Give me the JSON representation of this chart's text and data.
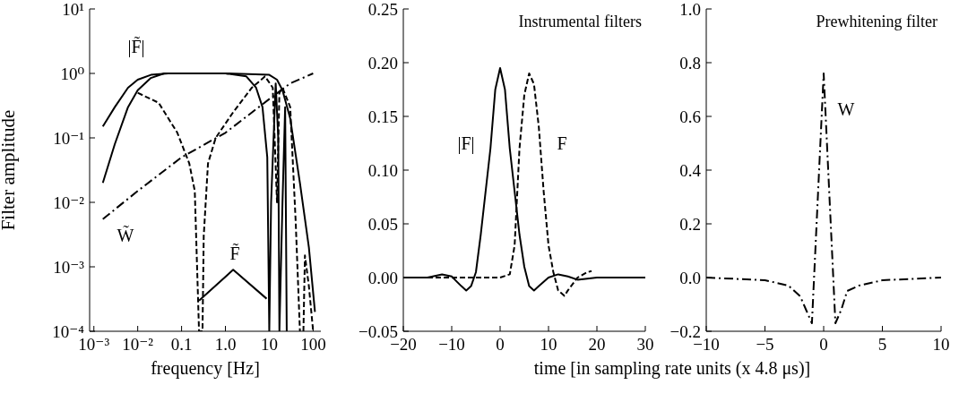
{
  "chart_data": [
    {
      "type": "line",
      "xlabel": "frequency [Hz]",
      "ylabel": "Filter amplitude",
      "log": "xy",
      "marker": "none",
      "xlim": [
        0.0008,
        150
      ],
      "xticks": [
        {
          "value": 0.001,
          "label": "10⁻³"
        },
        {
          "value": 0.01,
          "label": "10⁻²"
        },
        0.1,
        {
          "value": 1,
          "label": "1.0"
        },
        10,
        100
      ],
      "ylim": [
        0.0001,
        10
      ],
      "yticks": [
        {
          "value": 0.0001,
          "label": "10⁻⁴"
        },
        {
          "value": 0.001,
          "label": "10⁻³"
        },
        {
          "value": 0.01,
          "label": "10⁻²"
        },
        {
          "value": 0.1,
          "label": "10⁻¹"
        },
        {
          "value": 1,
          "label": "10⁰"
        },
        {
          "value": 10,
          "label": "10¹"
        }
      ],
      "series": [
        {
          "color": "#000000",
          "line_style": "solid",
          "x": [
            0.0016,
            0.003,
            0.006,
            0.01,
            0.02,
            0.05,
            1,
            10,
            15,
            20,
            30,
            50,
            80,
            110
          ],
          "values": [
            0.15,
            0.3,
            0.6,
            0.8,
            0.95,
            1,
            1,
            0.95,
            0.8,
            0.55,
            0.2,
            0.02,
            0.002,
            0.0002
          ]
        },
        {
          "color": "#000000",
          "line_style": "solid",
          "x": [
            0.0016,
            0.003,
            0.006,
            0.01,
            0.02,
            0.04,
            1,
            3,
            5,
            7,
            9,
            10,
            11,
            14,
            16,
            17,
            20,
            23,
            25
          ],
          "values": [
            0.02,
            0.08,
            0.3,
            0.55,
            0.85,
            1,
            1,
            0.9,
            0.6,
            0.3,
            0.05,
            0.0001,
            0.01,
            0.7,
            0.1,
            0.0001,
            0.01,
            0.3,
            0.0001
          ]
        },
        {
          "color": "#000000",
          "line_style": "solid",
          "x": [
            0.25,
            1.5,
            8.7
          ],
          "values": [
            0.0003,
            0.0009,
            0.00032
          ]
        },
        {
          "color": "#000000",
          "line_style": "dashed",
          "x": [
            0.01,
            0.03,
            0.08,
            0.15,
            0.2,
            0.25,
            0.3,
            0.32,
            0.4,
            0.6,
            1.5,
            4,
            8,
            12,
            15,
            17,
            20,
            30,
            40,
            50,
            55,
            60,
            65,
            80,
            100
          ],
          "values": [
            0.5,
            0.35,
            0.12,
            0.04,
            0.015,
            0.0001,
            0.0001,
            0.003,
            0.04,
            0.1,
            0.25,
            0.6,
            0.9,
            0.6,
            0.01,
            0.5,
            0.6,
            0.3,
            0.005,
            0.0001,
            null,
            0.0001,
            0.0015,
            0.0005,
            0.0001
          ]
        },
        {
          "color": "#000000",
          "line_style": "dashdot",
          "x": [
            0.0016,
            0.01,
            0.1,
            1,
            10,
            30,
            100
          ],
          "values": [
            0.0055,
            0.015,
            0.05,
            0.12,
            0.4,
            0.7,
            1
          ]
        }
      ],
      "annotations": [
        "|F̃|",
        "W̃",
        "F̃"
      ]
    },
    {
      "type": "line",
      "title": "Instrumental filters",
      "xlabel": "time [in sampling rate units (x 4.8 μs)]",
      "marker": "none",
      "xlim": [
        -20,
        30
      ],
      "xticks": [
        {
          "value": -20,
          "label": "−20"
        },
        {
          "value": -10,
          "label": "−10"
        },
        0,
        10,
        20,
        30
      ],
      "ylim": [
        -0.05,
        0.25
      ],
      "yticks": [
        {
          "value": -0.05,
          "label": "−0.05"
        },
        {
          "value": 0,
          "label": "0.00"
        },
        {
          "value": 0.05,
          "label": "0.05"
        },
        {
          "value": 0.1,
          "label": "0.10"
        },
        {
          "value": 0.15,
          "label": "0.15"
        },
        {
          "value": 0.2,
          "label": "0.20"
        },
        {
          "value": 0.25,
          "label": "0.25"
        }
      ],
      "series": [
        {
          "color": "#000000",
          "line_style": "solid",
          "x": [
            -20,
            -15,
            -12,
            -10,
            -8,
            -7,
            -6,
            -5,
            -4,
            -2,
            -1,
            0,
            1,
            2,
            3,
            4,
            5,
            6,
            7,
            8,
            10,
            12,
            14,
            16,
            20,
            30
          ],
          "values": [
            0,
            0,
            0.003,
            0.001,
            -0.008,
            -0.012,
            -0.008,
            0.005,
            0.04,
            0.12,
            0.175,
            0.195,
            0.175,
            0.12,
            0.08,
            0.04,
            0.01,
            -0.008,
            -0.012,
            -0.008,
            0,
            0.003,
            0.001,
            -0.002,
            0,
            0
          ]
        },
        {
          "color": "#000000",
          "line_style": "dashed",
          "x": [
            -20,
            0,
            2,
            3,
            4,
            5,
            6,
            7,
            8,
            9,
            10,
            11,
            12,
            13.3,
            14,
            16,
            18,
            18.9
          ],
          "values": [
            0,
            0,
            0.003,
            0.03,
            0.12,
            0.17,
            0.19,
            0.18,
            0.14,
            0.08,
            0.03,
            0.005,
            -0.012,
            -0.017,
            -0.012,
            0,
            0.005,
            0.006
          ]
        }
      ],
      "annotations": [
        "|F|",
        "F"
      ]
    },
    {
      "type": "line",
      "title": "Prewhitening filter",
      "marker": "none",
      "xlim": [
        -10,
        10
      ],
      "xticks": [
        {
          "value": -10,
          "label": "−10"
        },
        {
          "value": -5,
          "label": "−5"
        },
        0,
        5,
        10
      ],
      "ylim": [
        -0.2,
        1
      ],
      "yticks": [
        {
          "value": -0.2,
          "label": "−0.2"
        },
        {
          "value": 0,
          "label": "0.0"
        },
        0.2,
        0.4,
        0.6,
        0.8,
        {
          "value": 1,
          "label": "1.0"
        }
      ],
      "series": [
        {
          "color": "#000000",
          "line_style": "dashdot",
          "x": [
            -10,
            -5,
            -3,
            -2,
            -1.5,
            -1,
            0,
            1,
            1.5,
            2,
            3,
            5,
            10
          ],
          "values": [
            0,
            -0.01,
            -0.03,
            -0.07,
            -0.12,
            -0.17,
            0.76,
            -0.17,
            -0.12,
            -0.05,
            -0.03,
            -0.01,
            0
          ]
        }
      ],
      "annotations": [
        "W"
      ]
    }
  ]
}
